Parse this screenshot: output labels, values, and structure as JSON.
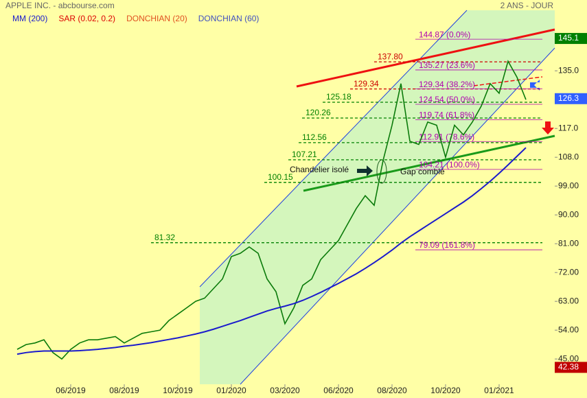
{
  "chart_data": {
    "type": "line",
    "title": "APPLE INC. - abcbourse.com",
    "subtitle": "2 ANS - JOUR",
    "legend": [
      {
        "label": "MM (200)",
        "color": "#1a1acc"
      },
      {
        "label": "SAR (0.02, 0.2)",
        "color": "#dd0000"
      },
      {
        "label": "DONCHIAN (20)",
        "color": "#e05020"
      },
      {
        "label": "DONCHIAN (60)",
        "color": "#4050c0"
      }
    ],
    "categories": [
      null,
      null,
      null,
      null,
      null,
      null,
      "06/2019",
      null,
      null,
      null,
      null,
      null,
      "08/2019",
      null,
      null,
      null,
      null,
      null,
      "10/2019",
      null,
      null,
      null,
      null,
      null,
      "01/2020",
      null,
      null,
      null,
      null,
      null,
      "03/2020",
      null,
      null,
      null,
      null,
      null,
      "06/2020",
      null,
      null,
      null,
      null,
      null,
      "08/2020",
      null,
      null,
      null,
      null,
      null,
      "10/2020",
      null,
      null,
      null,
      null,
      null,
      "01/2021",
      null,
      null,
      null
    ],
    "values": [
      48,
      49.5,
      50,
      51,
      47,
      45,
      48,
      50,
      51,
      51,
      51.5,
      52,
      50,
      51.5,
      53,
      53.5,
      54,
      57,
      59,
      61,
      63,
      64,
      67,
      70,
      77,
      78,
      80,
      78,
      70,
      66,
      56,
      61,
      68,
      70,
      76,
      79,
      82,
      87,
      92,
      96,
      93,
      107,
      118,
      131,
      113,
      112,
      119,
      118,
      108,
      118,
      115,
      119,
      124,
      131,
      128,
      138,
      133,
      126
    ],
    "color": "#0a7a0a",
    "series": [
      {
        "name": "MM (200)",
        "color": "#1a1acc",
        "values": [
          46.5,
          47,
          47.3,
          47.5,
          47.5,
          47.5,
          47.5,
          47.6,
          47.8,
          48,
          48.3,
          48.6,
          49,
          49.3,
          49.7,
          50.1,
          50.6,
          51.1,
          51.6,
          52.2,
          52.8,
          53.5,
          54.3,
          55.2,
          56.1,
          57,
          58,
          59,
          60,
          60.8,
          61.5,
          62.3,
          63.3,
          64.5,
          65.8,
          67.2,
          68.6,
          70.1,
          71.6,
          73.3,
          75.1,
          77,
          79,
          81.2,
          83.2,
          85,
          86.8,
          88.6,
          90.4,
          92.2,
          94,
          96,
          98.2,
          100.5,
          103,
          105.6,
          108.3,
          111
        ]
      }
    ],
    "ylim": [
      37.1,
      153.9
    ],
    "yticks": [
      {
        "value": 45,
        "label": "45.00"
      },
      {
        "value": 54,
        "label": "54.00"
      },
      {
        "value": 63,
        "label": "63.00"
      },
      {
        "value": 72,
        "label": "72.00"
      },
      {
        "value": 81,
        "label": "81.00"
      },
      {
        "value": 90,
        "label": "90.00"
      },
      {
        "value": 99,
        "label": "99.00"
      },
      {
        "value": 108,
        "label": "108.0"
      },
      {
        "value": 117,
        "label": "117.0"
      },
      {
        "value": 126,
        "label": "126.0"
      },
      {
        "value": 135,
        "label": "135.0"
      }
    ],
    "levels": [
      {
        "value": 137.8,
        "label": "137.80",
        "color": "#cc0000"
      },
      {
        "value": 129.34,
        "label": "129.34",
        "color": "#cc0000"
      },
      {
        "value": 125.18,
        "label": "125.18",
        "color": "#008000"
      },
      {
        "value": 120.26,
        "label": "120.26",
        "color": "#008000"
      },
      {
        "value": 112.56,
        "label": "112.56",
        "color": "#008000"
      },
      {
        "value": 107.21,
        "label": "107.21",
        "color": "#008000"
      },
      {
        "value": 100.15,
        "label": "100.15",
        "color": "#008000"
      },
      {
        "value": 81.32,
        "label": "81.32",
        "color": "#008000"
      }
    ],
    "fib_levels": [
      {
        "value": 144.87,
        "label": "144.87  (0.0%)"
      },
      {
        "value": 135.27,
        "label": "135.27  (23.6%)"
      },
      {
        "value": 129.34,
        "label": "129.34  (38.2%)"
      },
      {
        "value": 124.54,
        "label": "124.54  (50.0%)"
      },
      {
        "value": 119.74,
        "label": "119.74  (61.8%)"
      },
      {
        "value": 112.91,
        "label": "112.91  (78.6%)"
      },
      {
        "value": 104.21,
        "label": "104.21  (100.0%)"
      },
      {
        "value": 79.09,
        "label": "79.09  (161.8%)"
      }
    ],
    "fib_color": "#b000b0",
    "price_markers": [
      {
        "value": 145.1,
        "color": "#008000"
      },
      {
        "value": 126.3,
        "color": "#3060ff"
      },
      {
        "value": 42.38,
        "color": "#c00000"
      }
    ],
    "annotations": [
      "Chandelier isolé",
      "Gap comblé"
    ]
  }
}
